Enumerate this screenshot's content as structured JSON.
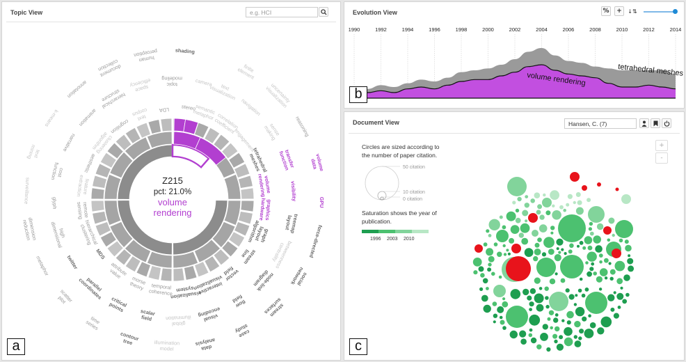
{
  "topic_view": {
    "title": "Topic View",
    "search_placeholder": "e.g. HCI",
    "center": {
      "id": "Z215",
      "pct": "pct: 21.0%",
      "name_line1": "volume",
      "name_line2": "rendering"
    },
    "corner_label": "a",
    "highlight_color": "#b23fd0",
    "labels": [
      {
        "t": "semantic\nmetaphor",
        "s": "light"
      },
      {
        "t": "text\nvisualization",
        "s": "light"
      },
      {
        "t": "finite\nelement",
        "s": "light"
      },
      {
        "t": "correlation\ncoefficient",
        "s": "light"
      },
      {
        "t": "navigation",
        "s": "light"
      },
      {
        "t": "uncertainty\nvisualization",
        "s": "light"
      },
      {
        "t": "engagement",
        "s": "light"
      },
      {
        "t": "sense\nmaking",
        "s": "light"
      },
      {
        "t": "reasoning",
        "s": "mid"
      },
      {
        "t": "tetrahedral\nmeshes",
        "s": "dark"
      },
      {
        "t": "transfer\nfunction",
        "s": "hl"
      },
      {
        "t": "volume\ndata",
        "s": "hl"
      },
      {
        "t": "volume\nrendering",
        "s": "hl"
      },
      {
        "t": "visibility",
        "s": "hl"
      },
      {
        "t": "GPU",
        "s": "hl"
      },
      {
        "t": "graphics\nhardware",
        "s": "hl"
      },
      {
        "t": "treemap\nlayout",
        "s": "dark"
      },
      {
        "t": "force-directed",
        "s": "dark"
      },
      {
        "t": "graph\nlayout\nalgorithm",
        "s": "dark"
      },
      {
        "t": "betweenness\ncentrality",
        "s": "light"
      },
      {
        "t": "social\nnetwork",
        "s": "dark"
      },
      {
        "t": "stream\nline",
        "s": "dark"
      },
      {
        "t": "node-link\ndiagram",
        "s": "dark"
      },
      {
        "t": "stream\nsurfaces",
        "s": "dark"
      },
      {
        "t": "vector\nfield",
        "s": "dark"
      },
      {
        "t": "flow\nfield",
        "s": "dark"
      },
      {
        "t": "case\nstudy",
        "s": "dark"
      },
      {
        "t": "interactive\nvisualization",
        "s": "dark"
      },
      {
        "t": "visual\nencoding",
        "s": "dark"
      },
      {
        "t": "data\nanalysis",
        "s": "dark"
      },
      {
        "t": "visualization\nsystem",
        "s": "dark"
      },
      {
        "t": "global\nillumination",
        "s": "light"
      },
      {
        "t": "illumination\nmodel",
        "s": "light"
      },
      {
        "t": "temporal\ncoherence",
        "s": "mid"
      },
      {
        "t": "scalar\nfield",
        "s": "dark"
      },
      {
        "t": "contour\ntree",
        "s": "dark"
      },
      {
        "t": "morse\ntheory",
        "s": "mid"
      },
      {
        "t": "critical\npoints",
        "s": "dark"
      },
      {
        "t": "time\nseries",
        "s": "mid"
      },
      {
        "t": "attribute\nvalue",
        "s": "mid"
      },
      {
        "t": "parallel\ncoordinates",
        "s": "dark"
      },
      {
        "t": "scatter\nplot",
        "s": "mid"
      },
      {
        "t": "MDS",
        "s": "dark"
      },
      {
        "t": "twitter",
        "s": "dark"
      },
      {
        "t": "metaphor",
        "s": "mid"
      },
      {
        "t": "hierarchical\nclustering",
        "s": "mid"
      },
      {
        "t": "high\ndimensional",
        "s": "mid"
      },
      {
        "t": "dimension\nreduction",
        "s": "mid"
      },
      {
        "t": "remote\nsensing",
        "s": "mid"
      },
      {
        "t": "glyph",
        "s": "mid"
      },
      {
        "t": "surveillance",
        "s": "light"
      },
      {
        "t": "feature\nextraction",
        "s": "light"
      },
      {
        "t": "cost\nfunction",
        "s": "mid"
      },
      {
        "t": "text\nmining",
        "s": "light"
      },
      {
        "t": "aesthetic",
        "s": "mid"
      },
      {
        "t": "narrative",
        "s": "mid"
      },
      {
        "t": "k-means",
        "s": "light"
      },
      {
        "t": "clustering\nalgorithm",
        "s": "light"
      },
      {
        "t": "animation",
        "s": "mid"
      },
      {
        "t": "annotation",
        "s": "mid"
      },
      {
        "t": "cognition",
        "s": "mid"
      },
      {
        "t": "hierarchical\nstructure",
        "s": "mid"
      },
      {
        "t": "document\ncollection",
        "s": "mid"
      },
      {
        "t": "text\ncorpus",
        "s": "light"
      },
      {
        "t": "space\nefficiency",
        "s": "light"
      },
      {
        "t": "human\nperception",
        "s": "mid"
      },
      {
        "t": "LDA",
        "s": "mid"
      },
      {
        "t": "topic\nmodeling",
        "s": "mid"
      },
      {
        "t": "shading",
        "s": "dark"
      },
      {
        "t": "stereo",
        "s": "mid"
      },
      {
        "t": "camera",
        "s": "light"
      }
    ]
  },
  "evolution_view": {
    "title": "Evolution View",
    "buttons": {
      "percent": "%",
      "add": "+",
      "sort": "↓⇅"
    },
    "corner_label": "b",
    "x_ticks": [
      "1990",
      "1992",
      "1994",
      "1996",
      "1998",
      "2000",
      "2002",
      "2004",
      "2006",
      "2008",
      "2010",
      "2012",
      "2014"
    ],
    "series_labels": {
      "top": "tetrahedral meshes",
      "bottom": "volume rendering"
    },
    "colors": {
      "top_series": "#9a9a9a",
      "bottom_series": "#c24fe0"
    },
    "slider_value": 1.0
  },
  "chart_data": {
    "type": "area",
    "x": [
      1990,
      1991,
      1992,
      1993,
      1994,
      1995,
      1996,
      1997,
      1998,
      1999,
      2000,
      2001,
      2002,
      2003,
      2004,
      2005,
      2006,
      2007,
      2008,
      2009,
      2010,
      2011,
      2012,
      2013,
      2014
    ],
    "series": [
      {
        "name": "volume rendering",
        "values": [
          2,
          3,
          4,
          3,
          5,
          6,
          5,
          7,
          9,
          10,
          10,
          12,
          14,
          17,
          18,
          15,
          13,
          12,
          11,
          8,
          6,
          6,
          7,
          6,
          5
        ]
      },
      {
        "name": "tetrahedral meshes",
        "values": [
          1,
          2,
          3,
          3,
          3,
          4,
          4,
          4,
          5,
          5,
          6,
          6,
          7,
          8,
          9,
          8,
          7,
          7,
          6,
          8,
          9,
          9,
          8,
          9,
          8
        ]
      }
    ],
    "xlim": [
      1990,
      2014
    ],
    "stacked": true
  },
  "document_view": {
    "title": "Document View",
    "author_value": "Hansen, C. (7)",
    "corner_label": "c",
    "zoom_in": "+",
    "zoom_out": "-",
    "legend": {
      "size_text_1": "Circles are sized according to",
      "size_text_2": "the number of paper citation.",
      "c50": "50 citation",
      "c10": "10 citation",
      "c0": "0 citation",
      "sat_text_1": "Saturation shows the year of",
      "sat_text_2": "publication.",
      "years": [
        "1996",
        "2003",
        "2010"
      ],
      "colors": [
        "#1e9e50",
        "#4cc170",
        "#82d49b",
        "#b8e7c5"
      ]
    },
    "highlight_color": "#e8131b"
  }
}
